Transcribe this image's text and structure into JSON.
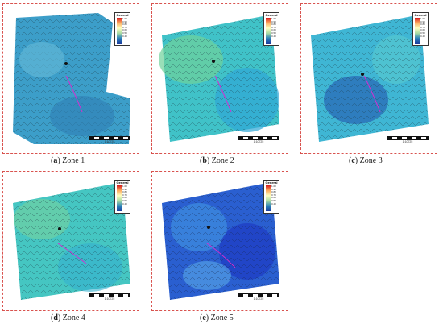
{
  "legend_title": "General",
  "legend_values": [
    "1.00",
    "0.90",
    "0.80",
    "0.70",
    "0.60",
    "0.50",
    "0.40"
  ],
  "scale_text": "1:10725",
  "tick_labels_x": [
    "400",
    "600",
    "800",
    "1000",
    "1200",
    "1400",
    "1600"
  ],
  "panels": [
    {
      "letter": "a",
      "zone": "Zone 1"
    },
    {
      "letter": "b",
      "zone": "Zone 2"
    },
    {
      "letter": "c",
      "zone": "Zone 3"
    },
    {
      "letter": "d",
      "zone": "Zone 4"
    },
    {
      "letter": "e",
      "zone": "Zone 5"
    }
  ]
}
